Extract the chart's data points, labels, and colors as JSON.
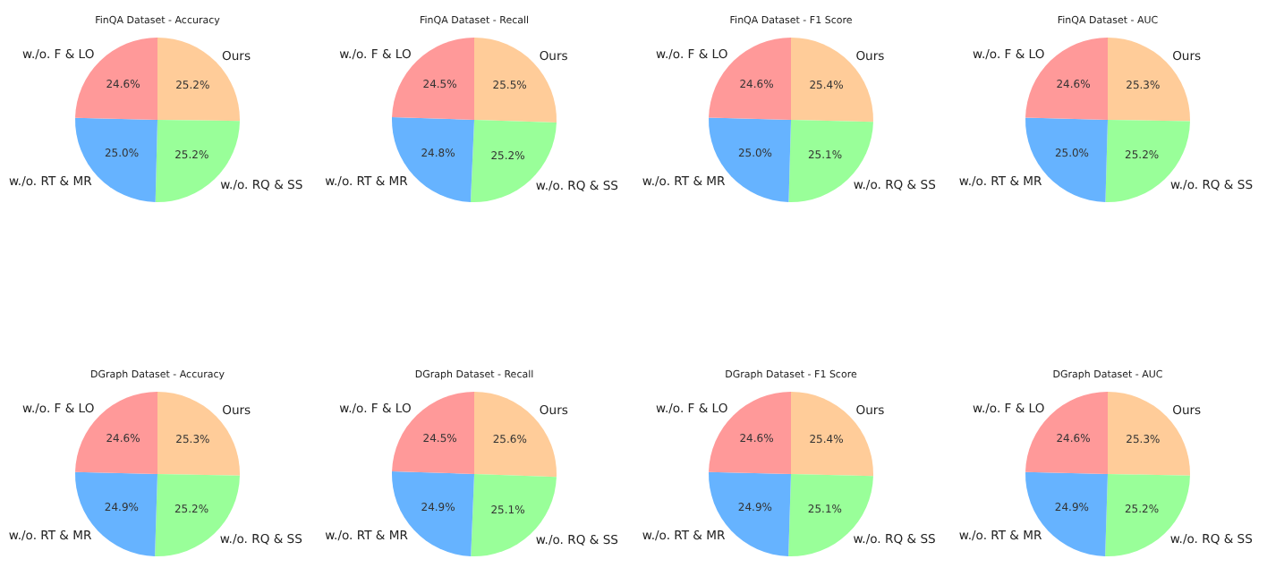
{
  "chart_data": [
    {
      "type": "pie",
      "title": "FinQA Dataset - Accuracy",
      "categories": [
        "Ours",
        "w./o. RQ & SS",
        "w./o. RT & MR",
        "w./o. F & LO"
      ],
      "values": [
        25.2,
        25.2,
        25.0,
        24.6
      ],
      "value_labels": [
        "25.2%",
        "25.2%",
        "25.0%",
        "24.6%"
      ],
      "colors": [
        "#ffcc99",
        "#99ff99",
        "#66b3ff",
        "#ff9999"
      ]
    },
    {
      "type": "pie",
      "title": "FinQA Dataset - Recall",
      "categories": [
        "Ours",
        "w./o. RQ & SS",
        "w./o. RT & MR",
        "w./o. F & LO"
      ],
      "values": [
        25.5,
        25.2,
        24.8,
        24.5
      ],
      "value_labels": [
        "25.5%",
        "25.2%",
        "24.8%",
        "24.5%"
      ],
      "colors": [
        "#ffcc99",
        "#99ff99",
        "#66b3ff",
        "#ff9999"
      ]
    },
    {
      "type": "pie",
      "title": "FinQA Dataset - F1 Score",
      "categories": [
        "Ours",
        "w./o. RQ & SS",
        "w./o. RT & MR",
        "w./o. F & LO"
      ],
      "values": [
        25.4,
        25.1,
        25.0,
        24.6
      ],
      "value_labels": [
        "25.4%",
        "25.1%",
        "25.0%",
        "24.6%"
      ],
      "colors": [
        "#ffcc99",
        "#99ff99",
        "#66b3ff",
        "#ff9999"
      ]
    },
    {
      "type": "pie",
      "title": "FinQA Dataset - AUC",
      "categories": [
        "Ours",
        "w./o. RQ & SS",
        "w./o. RT & MR",
        "w./o. F & LO"
      ],
      "values": [
        25.3,
        25.2,
        25.0,
        24.6
      ],
      "value_labels": [
        "25.3%",
        "25.2%",
        "25.0%",
        "24.6%"
      ],
      "colors": [
        "#ffcc99",
        "#99ff99",
        "#66b3ff",
        "#ff9999"
      ]
    },
    {
      "type": "pie",
      "title": "DGraph Dataset - Accuracy",
      "categories": [
        "Ours",
        "w./o. RQ & SS",
        "w./o. RT & MR",
        "w./o. F & LO"
      ],
      "values": [
        25.3,
        25.2,
        24.9,
        24.6
      ],
      "value_labels": [
        "25.3%",
        "25.2%",
        "24.9%",
        "24.6%"
      ],
      "colors": [
        "#ffcc99",
        "#99ff99",
        "#66b3ff",
        "#ff9999"
      ]
    },
    {
      "type": "pie",
      "title": "DGraph Dataset - Recall",
      "categories": [
        "Ours",
        "w./o. RQ & SS",
        "w./o. RT & MR",
        "w./o. F & LO"
      ],
      "values": [
        25.6,
        25.1,
        24.9,
        24.5
      ],
      "value_labels": [
        "25.6%",
        "25.1%",
        "24.9%",
        "24.5%"
      ],
      "colors": [
        "#ffcc99",
        "#99ff99",
        "#66b3ff",
        "#ff9999"
      ]
    },
    {
      "type": "pie",
      "title": "DGraph Dataset - F1 Score",
      "categories": [
        "Ours",
        "w./o. RQ & SS",
        "w./o. RT & MR",
        "w./o. F & LO"
      ],
      "values": [
        25.4,
        25.1,
        24.9,
        24.6
      ],
      "value_labels": [
        "25.4%",
        "25.1%",
        "24.9%",
        "24.6%"
      ],
      "colors": [
        "#ffcc99",
        "#99ff99",
        "#66b3ff",
        "#ff9999"
      ]
    },
    {
      "type": "pie",
      "title": "DGraph Dataset - AUC",
      "categories": [
        "Ours",
        "w./o. RQ & SS",
        "w./o. RT & MR",
        "w./o. F & LO"
      ],
      "values": [
        25.3,
        25.2,
        24.9,
        24.6
      ],
      "value_labels": [
        "25.3%",
        "25.2%",
        "24.9%",
        "24.6%"
      ],
      "colors": [
        "#ffcc99",
        "#99ff99",
        "#66b3ff",
        "#ff9999"
      ]
    }
  ]
}
